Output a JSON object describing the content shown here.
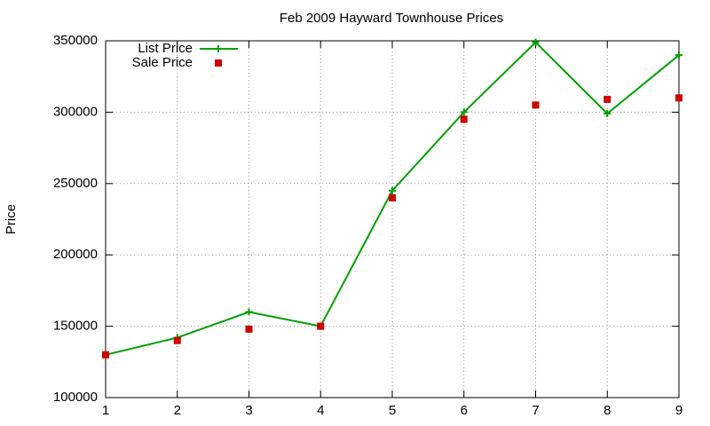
{
  "chart_data": {
    "type": "line",
    "title": "Feb 2009 Hayward Townhouse Prices",
    "y_label": "Price",
    "x": [
      1,
      2,
      3,
      4,
      5,
      6,
      7,
      8,
      9
    ],
    "xlim": [
      1,
      9
    ],
    "xticks": [
      1,
      2,
      3,
      4,
      5,
      6,
      7,
      8,
      9
    ],
    "ylim": [
      100000,
      350000
    ],
    "yticks": [
      100000,
      150000,
      200000,
      250000,
      300000,
      350000
    ],
    "grid": true,
    "legend": "top-left",
    "series": [
      {
        "name": "List Price",
        "color": "#00a000",
        "style": "linespoints",
        "marker": "plus",
        "values": [
          130000,
          142000,
          160000,
          150000,
          245000,
          300000,
          349000,
          299000,
          340000
        ]
      },
      {
        "name": "Sale Price",
        "color": "#cc0000",
        "style": "points",
        "marker": "square",
        "values": [
          130000,
          140000,
          148000,
          150000,
          240000,
          295000,
          305000,
          309000,
          310000
        ]
      }
    ]
  }
}
